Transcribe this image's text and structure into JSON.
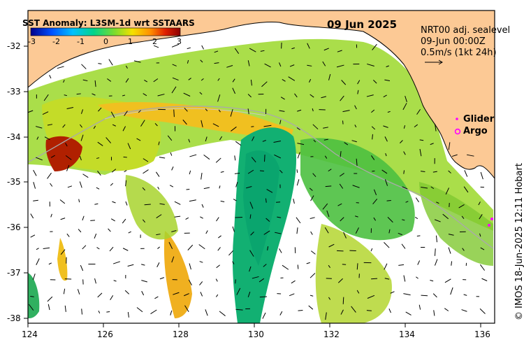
{
  "map": {
    "date": "09 Jun 2025",
    "colorbar": {
      "title": "SST Anomaly: L3SM-1d wrt SSTAARS",
      "ticks": [
        "-3",
        "-2",
        "-1",
        "0",
        "1",
        "2",
        "3"
      ],
      "colors": [
        "#00008b",
        "#0050ff",
        "#00c0ff",
        "#00d48a",
        "#7bdc2e",
        "#f5e000",
        "#ff9000",
        "#e02000",
        "#8b0000"
      ]
    },
    "info": {
      "line1": "NRT00 adj. sealevel",
      "line2": "09-Jun 00:00Z",
      "line3": "0.5m/s (1kt 24h)"
    },
    "legend": {
      "glider": "Glider",
      "argo": "Argo",
      "glider_color": "#ff00ff",
      "argo_color": "#ff00ff"
    },
    "credit": "© IMOS 18-Jun-2025 12:11 Hobart",
    "axes": {
      "lat_ticks": [
        "-32",
        "-33",
        "-34",
        "-35",
        "-36",
        "-37",
        "-38"
      ],
      "lon_ticks": [
        "124",
        "126",
        "128",
        "130",
        "132",
        "134",
        "136"
      ]
    },
    "colors": {
      "land": "#fcc995",
      "ocean_nodata": "#ffffff"
    }
  }
}
